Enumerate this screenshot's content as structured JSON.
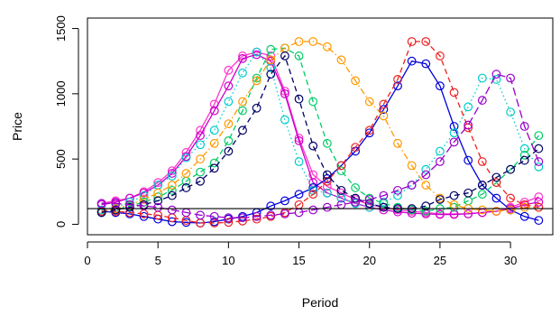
{
  "chart_data": {
    "type": "line",
    "title": "",
    "xlabel": "Period",
    "ylabel": "Price",
    "xlim": [
      0,
      33
    ],
    "ylim": [
      -80,
      1580
    ],
    "x_ticks": [
      0,
      5,
      10,
      15,
      20,
      25,
      30
    ],
    "y_ticks": [
      0,
      500,
      1000,
      1500
    ],
    "x_tick_labels": [
      "0",
      "5",
      "10",
      "15",
      "20",
      "25",
      "30"
    ],
    "y_tick_labels": [
      "0",
      "500",
      "1000",
      "1500"
    ],
    "reference_line": {
      "y": 120,
      "color": "#000000"
    },
    "grid": false,
    "legend": "none",
    "marker": "open-circle",
    "x": [
      1,
      2,
      3,
      4,
      5,
      6,
      7,
      8,
      9,
      10,
      11,
      12,
      13,
      14,
      15,
      16,
      17,
      18,
      19,
      20,
      21,
      22,
      23,
      24,
      25,
      26,
      27,
      28,
      29,
      30,
      31,
      32
    ],
    "series": [
      {
        "color": "#ff33cc",
        "style": "solid",
        "values": [
          160,
          180,
          200,
          250,
          320,
          410,
          550,
          720,
          920,
          1180,
          1290,
          1320,
          1290,
          1020,
          660,
          380,
          290,
          240,
          190,
          150,
          130,
          110,
          100,
          90,
          80,
          80,
          80,
          90,
          100,
          130,
          170,
          210
        ]
      },
      {
        "color": "#cc00cc",
        "style": "solid",
        "values": [
          150,
          170,
          200,
          240,
          300,
          390,
          520,
          680,
          870,
          1060,
          1270,
          1300,
          1250,
          1000,
          640,
          320,
          240,
          200,
          160,
          130,
          110,
          95,
          85,
          80,
          75,
          75,
          80,
          90,
          100,
          120,
          150,
          170
        ]
      },
      {
        "color": "#0000dd",
        "style": "solid",
        "values": [
          100,
          90,
          80,
          60,
          40,
          20,
          15,
          10,
          20,
          40,
          60,
          90,
          140,
          180,
          230,
          280,
          350,
          450,
          560,
          700,
          880,
          1060,
          1250,
          1230,
          1060,
          750,
          490,
          300,
          200,
          110,
          60,
          30
        ]
      },
      {
        "color": "#00cccc",
        "style": "dotted",
        "values": [
          110,
          130,
          170,
          220,
          300,
          370,
          510,
          610,
          720,
          940,
          1160,
          1320,
          1200,
          800,
          480,
          260,
          240,
          200,
          160,
          130,
          170,
          220,
          300,
          420,
          560,
          700,
          900,
          1120,
          1110,
          860,
          580,
          440
        ]
      },
      {
        "color": "#00cc66",
        "style": "dashed",
        "values": [
          90,
          110,
          140,
          170,
          210,
          260,
          330,
          400,
          470,
          640,
          870,
          1120,
          1340,
          1350,
          1290,
          940,
          620,
          410,
          280,
          200,
          160,
          130,
          110,
          100,
          120,
          130,
          180,
          230,
          320,
          420,
          530,
          680
        ]
      },
      {
        "color": "#ff9900",
        "style": "dashdot",
        "values": [
          100,
          120,
          150,
          190,
          240,
          300,
          390,
          500,
          620,
          770,
          940,
          1100,
          1260,
          1350,
          1400,
          1400,
          1360,
          1260,
          1100,
          940,
          830,
          620,
          450,
          300,
          200,
          150,
          120,
          110,
          100,
          110,
          130,
          130
        ]
      },
      {
        "color": "#ee2222",
        "style": "dashed",
        "values": [
          100,
          100,
          90,
          80,
          70,
          50,
          30,
          10,
          10,
          15,
          25,
          40,
          60,
          90,
          150,
          230,
          330,
          450,
          590,
          720,
          920,
          1110,
          1400,
          1400,
          1290,
          1010,
          740,
          480,
          320,
          200,
          150,
          130
        ]
      },
      {
        "color": "#000066",
        "style": "dashed",
        "values": [
          90,
          110,
          130,
          150,
          180,
          220,
          280,
          330,
          430,
          560,
          720,
          890,
          1150,
          1290,
          960,
          600,
          380,
          260,
          200,
          160,
          130,
          120,
          120,
          140,
          190,
          220,
          240,
          300,
          360,
          420,
          490,
          580
        ]
      },
      {
        "color": "#9900cc",
        "style": "longdash",
        "values": [
          160,
          160,
          150,
          140,
          130,
          110,
          90,
          70,
          60,
          50,
          50,
          60,
          70,
          80,
          90,
          110,
          130,
          150,
          170,
          190,
          220,
          260,
          300,
          380,
          480,
          630,
          760,
          950,
          1150,
          1120,
          750,
          480
        ]
      }
    ]
  }
}
